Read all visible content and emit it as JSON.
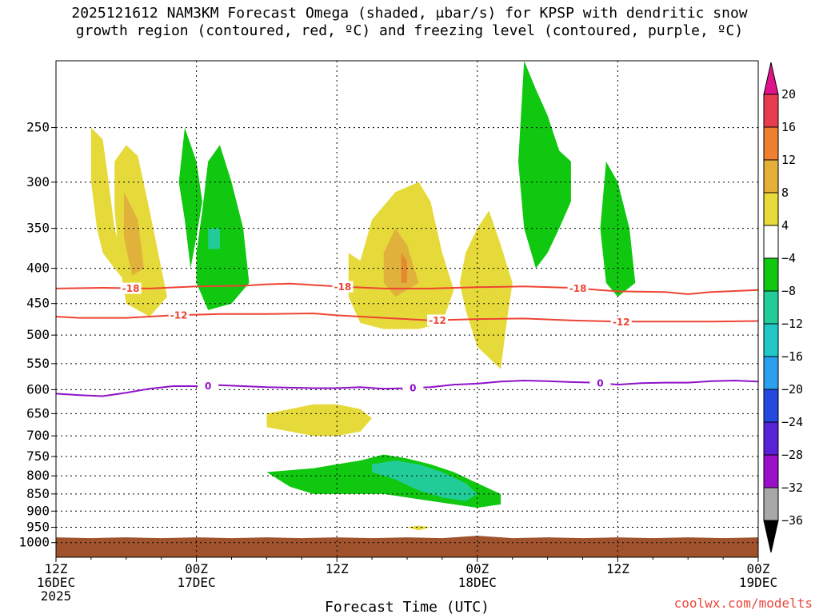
{
  "title": {
    "line1": "2025121612 NAM3KM Forecast Omega (shaded, μbar/s) for KPSP with dendritic snow",
    "line2": "growth region (contoured, red, ºC) and freezing level (contoured, purple, ºC)"
  },
  "credit": "coolwx.com/modelts",
  "colors": {
    "yellow": "#e6da3a",
    "gold": "#e0b23c",
    "orange": "#e58a2e",
    "green": "#10c810",
    "teal": "#22cc99",
    "cyan": "#22c8c8",
    "red_line": "#ee4433",
    "purple_line": "#9010c8",
    "ground": "#a0522d"
  },
  "chart_data": {
    "type": "heatmap",
    "title": "2025121612 NAM3KM Forecast Omega (shaded, μbar/s) for KPSP with dendritic snow growth region (contoured, red, ºC) and freezing level (contoured, purple, ºC)",
    "xlabel": "Forecast Time (UTC)",
    "ylabel": "",
    "x_unit": "hours since 2025-12-16 12Z",
    "x_range": [
      0,
      60
    ],
    "x_ticks": [
      {
        "pos": 0,
        "line1": "12Z",
        "line2": "16DEC",
        "line3": "2025"
      },
      {
        "pos": 12,
        "line1": "00Z",
        "line2": "17DEC",
        "line3": ""
      },
      {
        "pos": 24,
        "line1": "12Z",
        "line2": "",
        "line3": ""
      },
      {
        "pos": 36,
        "line1": "00Z",
        "line2": "18DEC",
        "line3": ""
      },
      {
        "pos": 48,
        "line1": "12Z",
        "line2": "",
        "line3": ""
      },
      {
        "pos": 60,
        "line1": "00Z",
        "line2": "19DEC",
        "line3": ""
      }
    ],
    "y_unit": "hPa",
    "y_range": [
      200,
      1050
    ],
    "y_scale": "log",
    "y_ticks": [
      250,
      300,
      350,
      400,
      450,
      500,
      550,
      600,
      650,
      700,
      750,
      800,
      850,
      900,
      950,
      1000
    ],
    "grid": true,
    "colorbar": {
      "labels": [
        "20",
        "16",
        "12",
        "8",
        "4",
        "−4",
        "−8",
        "−12",
        "−16",
        "−20",
        "−24",
        "−28",
        "−32",
        "−36"
      ],
      "colors": [
        "#e83c50",
        "#ee8030",
        "#e4b03a",
        "#e8da38",
        "#ffffff",
        "#10c810",
        "#22cc99",
        "#22c8c8",
        "#2aa0ee",
        "#2448e0",
        "#5a22d8",
        "#9a10c8",
        "#a8a8a8"
      ],
      "top_triangle": "#e0148a",
      "bottom_triangle": "#000000"
    },
    "contours": [
      {
        "name": "-18",
        "color": "#ee4433",
        "points": [
          [
            0,
            428
          ],
          [
            4,
            427
          ],
          [
            8,
            428
          ],
          [
            12,
            425
          ],
          [
            16,
            424
          ],
          [
            18,
            422
          ],
          [
            20,
            421
          ],
          [
            24,
            425
          ],
          [
            28,
            428
          ],
          [
            32,
            428
          ],
          [
            36,
            426
          ],
          [
            40,
            425
          ],
          [
            44,
            427
          ],
          [
            48,
            432
          ],
          [
            52,
            433
          ],
          [
            54,
            436
          ],
          [
            56,
            433
          ],
          [
            60,
            430
          ]
        ],
        "labels": [
          {
            "x": 6.4,
            "text": "-18"
          },
          {
            "x": 24.5,
            "text": "-18"
          },
          {
            "x": 44.6,
            "text": "-18"
          }
        ]
      },
      {
        "name": "-12",
        "color": "#ee4433",
        "points": [
          [
            0,
            470
          ],
          [
            2,
            472
          ],
          [
            6,
            472
          ],
          [
            10,
            468
          ],
          [
            14,
            466
          ],
          [
            18,
            466
          ],
          [
            22,
            465
          ],
          [
            24,
            468
          ],
          [
            28,
            472
          ],
          [
            32,
            476
          ],
          [
            36,
            474
          ],
          [
            40,
            473
          ],
          [
            44,
            476
          ],
          [
            48,
            478
          ],
          [
            52,
            478
          ],
          [
            56,
            478
          ],
          [
            60,
            477
          ]
        ],
        "labels": [
          {
            "x": 10.5,
            "text": "-12"
          },
          {
            "x": 32.6,
            "text": "-12"
          },
          {
            "x": 48.3,
            "text": "-12"
          }
        ]
      },
      {
        "name": "0",
        "color": "#9010c8",
        "points": [
          [
            0,
            608
          ],
          [
            2,
            611
          ],
          [
            4,
            613
          ],
          [
            6,
            606
          ],
          [
            8,
            598
          ],
          [
            10,
            593
          ],
          [
            12,
            593
          ],
          [
            14,
            591
          ],
          [
            16,
            593
          ],
          [
            18,
            595
          ],
          [
            20,
            596
          ],
          [
            22,
            597
          ],
          [
            24,
            597
          ],
          [
            26,
            595
          ],
          [
            28,
            598
          ],
          [
            30,
            597
          ],
          [
            32,
            595
          ],
          [
            34,
            590
          ],
          [
            36,
            588
          ],
          [
            38,
            584
          ],
          [
            40,
            582
          ],
          [
            42,
            583
          ],
          [
            44,
            585
          ],
          [
            46,
            586
          ],
          [
            48,
            590
          ],
          [
            50,
            587
          ],
          [
            52,
            586
          ],
          [
            54,
            586
          ],
          [
            56,
            583
          ],
          [
            58,
            582
          ],
          [
            60,
            584
          ]
        ],
        "labels": [
          {
            "x": 13,
            "text": "0"
          },
          {
            "x": 30.5,
            "text": "0"
          },
          {
            "x": 46.5,
            "text": "0"
          }
        ]
      }
    ],
    "omega_regions": [
      {
        "level": 4,
        "color": "#e6da3a",
        "points": [
          [
            3,
            250
          ],
          [
            4,
            260
          ],
          [
            4.5,
            300
          ],
          [
            5,
            350
          ],
          [
            6,
            400
          ],
          [
            6,
            420
          ],
          [
            5,
            400
          ],
          [
            4,
            380
          ],
          [
            3.5,
            350
          ],
          [
            3,
            300
          ]
        ]
      },
      {
        "level": 4,
        "color": "#e6da3a",
        "points": [
          [
            5,
            280
          ],
          [
            6,
            265
          ],
          [
            7,
            275
          ],
          [
            8,
            330
          ],
          [
            9,
            400
          ],
          [
            9.5,
            440
          ],
          [
            8,
            470
          ],
          [
            6,
            450
          ],
          [
            5.5,
            400
          ],
          [
            5,
            330
          ]
        ]
      },
      {
        "level": 8,
        "color": "#e0b23c",
        "points": [
          [
            5.8,
            310
          ],
          [
            7,
            340
          ],
          [
            7.5,
            400
          ],
          [
            6.5,
            410
          ],
          [
            5.8,
            360
          ]
        ]
      },
      {
        "level": -4,
        "color": "#10c810",
        "points": [
          [
            11,
            250
          ],
          [
            12,
            280
          ],
          [
            12.5,
            320
          ],
          [
            12,
            360
          ],
          [
            11.5,
            400
          ],
          [
            11,
            340
          ],
          [
            10.5,
            300
          ]
        ]
      },
      {
        "level": -4,
        "color": "#10c810",
        "points": [
          [
            13,
            280
          ],
          [
            14,
            265
          ],
          [
            15,
            300
          ],
          [
            16,
            350
          ],
          [
            16.5,
            420
          ],
          [
            15,
            450
          ],
          [
            13,
            460
          ],
          [
            12,
            420
          ],
          [
            12,
            380
          ],
          [
            12.5,
            330
          ]
        ]
      },
      {
        "level": -8,
        "color": "#22cc99",
        "points": [
          [
            13,
            350
          ],
          [
            14,
            350
          ],
          [
            14,
            375
          ],
          [
            13,
            375
          ]
        ]
      },
      {
        "level": 4,
        "color": "#e6da3a",
        "points": [
          [
            25,
            380
          ],
          [
            26,
            390
          ],
          [
            27,
            340
          ],
          [
            29,
            310
          ],
          [
            31,
            300
          ],
          [
            32,
            320
          ],
          [
            33,
            380
          ],
          [
            34,
            430
          ],
          [
            33,
            480
          ],
          [
            31,
            490
          ],
          [
            28,
            490
          ],
          [
            26,
            480
          ],
          [
            25,
            440
          ]
        ]
      },
      {
        "level": 8,
        "color": "#e0b23c",
        "points": [
          [
            28,
            380
          ],
          [
            29,
            350
          ],
          [
            30,
            370
          ],
          [
            31,
            420
          ],
          [
            29,
            440
          ],
          [
            28,
            420
          ]
        ]
      },
      {
        "level": 12,
        "color": "#e58a2e",
        "points": [
          [
            29.5,
            380
          ],
          [
            30,
            390
          ],
          [
            30,
            420
          ],
          [
            29.5,
            420
          ]
        ]
      },
      {
        "level": 4,
        "color": "#e6da3a",
        "points": [
          [
            35,
            380
          ],
          [
            36,
            350
          ],
          [
            37,
            330
          ],
          [
            38,
            370
          ],
          [
            39,
            420
          ],
          [
            38.5,
            480
          ],
          [
            38,
            560
          ],
          [
            36,
            520
          ],
          [
            35,
            460
          ],
          [
            34.5,
            420
          ]
        ]
      },
      {
        "level": -4,
        "color": "#10c810",
        "points": [
          [
            40,
            200
          ],
          [
            41,
            220
          ],
          [
            42,
            240
          ],
          [
            43,
            270
          ],
          [
            44,
            280
          ],
          [
            44,
            320
          ],
          [
            43,
            350
          ],
          [
            42,
            380
          ],
          [
            41,
            400
          ],
          [
            40,
            350
          ],
          [
            39.5,
            280
          ]
        ]
      },
      {
        "level": -4,
        "color": "#10c810",
        "points": [
          [
            47,
            280
          ],
          [
            48,
            300
          ],
          [
            49,
            350
          ],
          [
            49.5,
            420
          ],
          [
            48,
            440
          ],
          [
            47,
            420
          ],
          [
            46.5,
            350
          ]
        ]
      },
      {
        "level": -4,
        "color": "#10c810",
        "points": [
          [
            18,
            790
          ],
          [
            20,
            785
          ],
          [
            22,
            780
          ],
          [
            24,
            770
          ],
          [
            26,
            760
          ],
          [
            28,
            745
          ],
          [
            30,
            755
          ],
          [
            32,
            770
          ],
          [
            34,
            790
          ],
          [
            36,
            820
          ],
          [
            38,
            850
          ],
          [
            38,
            880
          ],
          [
            36,
            890
          ],
          [
            34,
            880
          ],
          [
            32,
            870
          ],
          [
            30,
            860
          ],
          [
            28,
            850
          ],
          [
            26,
            850
          ],
          [
            24,
            850
          ],
          [
            22,
            850
          ],
          [
            20,
            830
          ],
          [
            19,
            810
          ]
        ]
      },
      {
        "level": -8,
        "color": "#22cc99",
        "points": [
          [
            27,
            770
          ],
          [
            29,
            760
          ],
          [
            31,
            770
          ],
          [
            33,
            790
          ],
          [
            35,
            820
          ],
          [
            36,
            850
          ],
          [
            35,
            870
          ],
          [
            33,
            860
          ],
          [
            31,
            840
          ],
          [
            29,
            810
          ],
          [
            27,
            790
          ]
        ]
      },
      {
        "level": 4,
        "color": "#e6da3a",
        "points": [
          [
            18,
            650
          ],
          [
            20,
            640
          ],
          [
            22,
            630
          ],
          [
            24,
            630
          ],
          [
            26,
            640
          ],
          [
            27,
            660
          ],
          [
            26,
            690
          ],
          [
            24,
            700
          ],
          [
            22,
            700
          ],
          [
            20,
            690
          ],
          [
            18,
            680
          ]
        ]
      },
      {
        "level": 4,
        "color": "#e6da3a",
        "points": [
          [
            30,
            950
          ],
          [
            31,
            945
          ],
          [
            32,
            950
          ],
          [
            31,
            960
          ]
        ]
      }
    ]
  }
}
